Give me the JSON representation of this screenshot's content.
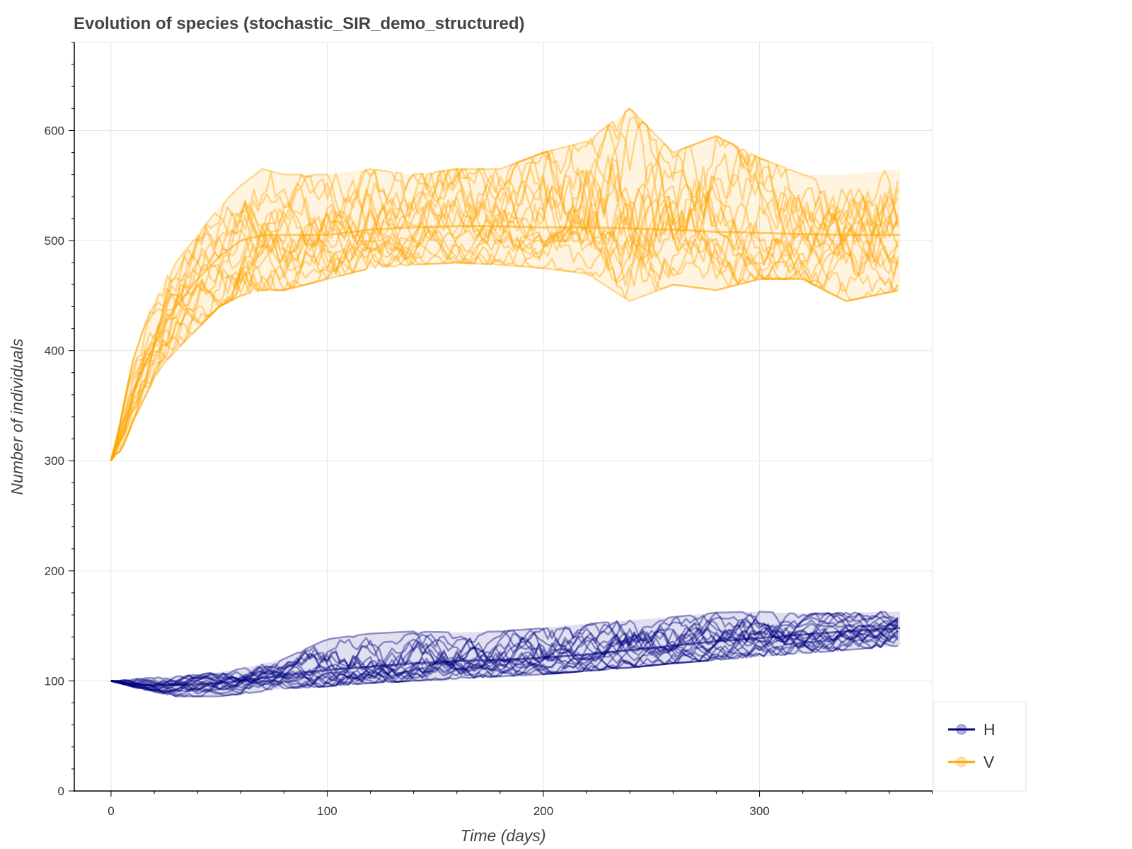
{
  "chart_data": {
    "type": "line",
    "title": "Evolution of species (stochastic_SIR_demo_structured)",
    "xlabel": "Time (days)",
    "ylabel": "Number of individuals",
    "xlim": [
      -17,
      380
    ],
    "ylim": [
      0,
      680
    ],
    "x_ticks": [
      0,
      100,
      200,
      300
    ],
    "y_ticks": [
      0,
      100,
      200,
      300,
      400,
      500,
      600
    ],
    "x_tick_labels": [
      "0",
      "100",
      "200",
      "300"
    ],
    "y_tick_labels": [
      "0",
      "100",
      "200",
      "300",
      "400",
      "500",
      "600"
    ],
    "grid": true,
    "legend": {
      "placement": "right-bottom",
      "items": [
        "H",
        "V"
      ]
    },
    "colors": {
      "H": "#000080",
      "V": "#FFA500"
    },
    "series": [
      {
        "name": "H",
        "color": "#000080",
        "runs": 20,
        "x": [
          0,
          10,
          20,
          30,
          40,
          50,
          60,
          80,
          100,
          120,
          140,
          160,
          180,
          200,
          220,
          240,
          260,
          280,
          300,
          320,
          340,
          365
        ],
        "values": [
          100,
          97,
          96,
          96,
          97,
          98,
          100,
          105,
          110,
          113,
          116,
          118,
          119,
          121,
          124,
          128,
          132,
          136,
          139,
          142,
          145,
          148
        ],
        "min": [
          100,
          94,
          90,
          86,
          86,
          86,
          88,
          93,
          95,
          98,
          100,
          102,
          104,
          106,
          109,
          112,
          116,
          119,
          122,
          125,
          128,
          132
        ],
        "max": [
          100,
          102,
          103,
          104,
          106,
          108,
          111,
          120,
          138,
          143,
          145,
          144,
          145,
          148,
          152,
          155,
          158,
          162,
          163,
          161,
          162,
          163
        ]
      },
      {
        "name": "V",
        "color": "#FFA500",
        "runs": 20,
        "x": [
          0,
          5,
          10,
          15,
          20,
          25,
          30,
          40,
          50,
          60,
          70,
          80,
          100,
          120,
          140,
          160,
          180,
          200,
          220,
          240,
          260,
          280,
          300,
          320,
          340,
          365
        ],
        "values": [
          300,
          330,
          360,
          385,
          405,
          425,
          440,
          465,
          485,
          500,
          505,
          505,
          505,
          510,
          512,
          513,
          513,
          512,
          512,
          511,
          510,
          508,
          507,
          506,
          505,
          505
        ],
        "min": [
          300,
          310,
          335,
          355,
          375,
          390,
          400,
          420,
          440,
          450,
          455,
          455,
          465,
          475,
          478,
          480,
          478,
          475,
          470,
          445,
          460,
          455,
          465,
          465,
          445,
          455
        ],
        "max": [
          300,
          345,
          390,
          420,
          445,
          465,
          480,
          505,
          530,
          550,
          565,
          560,
          560,
          565,
          560,
          565,
          565,
          580,
          590,
          620,
          580,
          595,
          575,
          560,
          560,
          565
        ]
      }
    ]
  }
}
